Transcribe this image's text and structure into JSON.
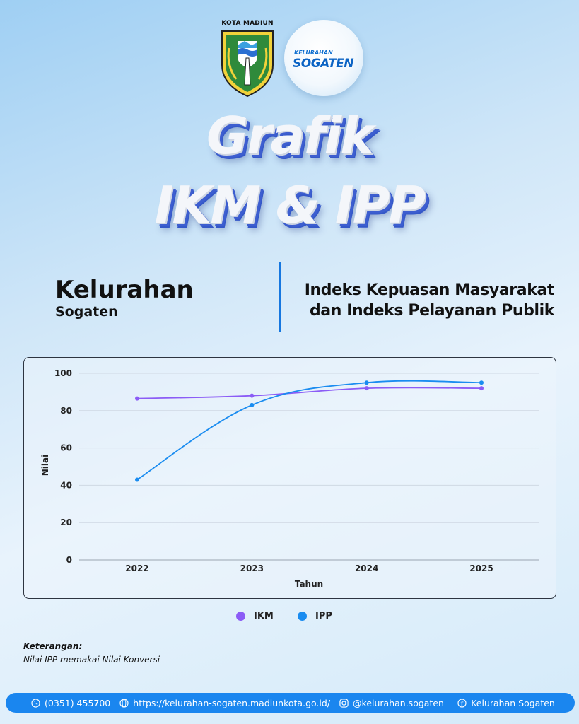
{
  "header": {
    "crest_label": "KOTA MADIUN",
    "badge_top": "KELURAHAN",
    "badge_main": "SOGATEN"
  },
  "title": {
    "line1": "Grafik",
    "line2": "IKM & IPP"
  },
  "subtitle": {
    "left_main": "Kelurahan",
    "left_sub": "Sogaten",
    "right_line1": "Indeks Kepuasan Masyarakat",
    "right_line2": "dan Indeks Pelayanan Publik"
  },
  "chart_data": {
    "type": "line",
    "categories": [
      "2022",
      "2023",
      "2024",
      "2025"
    ],
    "xlabel": "Tahun",
    "ylabel": "Nilai",
    "ylim": [
      0,
      100
    ],
    "yticks": [
      0,
      20,
      40,
      60,
      80,
      100
    ],
    "grid": true,
    "legend": "bottom-center",
    "series": [
      {
        "name": "IKM",
        "values": [
          86.5,
          88,
          92,
          92
        ],
        "color": "#8b5cf6"
      },
      {
        "name": "IPP",
        "values": [
          43,
          83,
          95,
          95
        ],
        "color": "#1a8cf0"
      }
    ]
  },
  "note": {
    "heading": "Keterangan:",
    "text": "Nilai IPP memakai Nilai Konversi"
  },
  "footer": {
    "phone": "(0351) 455700",
    "website": "https://kelurahan-sogaten.madiunkota.go.id/",
    "instagram": "@kelurahan.sogaten_",
    "facebook": "Kelurahan Sogaten",
    "icons": [
      "phone-icon",
      "globe-icon",
      "instagram-icon",
      "facebook-icon"
    ]
  }
}
